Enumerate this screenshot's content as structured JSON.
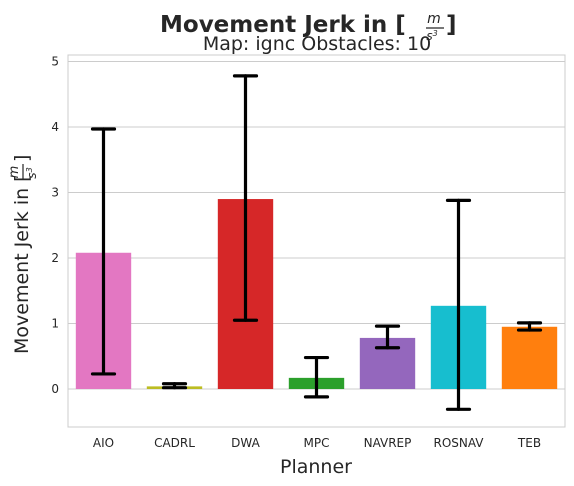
{
  "chart_data": {
    "type": "bar",
    "title": "Movement Jerk in [m/s³]",
    "title_prefix": "Movement Jerk in [",
    "title_suffix": "]",
    "subtitle": "Map: ignc Obstacles: 10",
    "xlabel": "Planner",
    "ylabel_prefix": "Movement Jerk in [",
    "ylabel_suffix": "]",
    "unit_num": "m",
    "unit_den": "s",
    "unit_den_exp": "3",
    "categories": [
      "AIO",
      "CADRL",
      "DWA",
      "MPC",
      "NAVREP",
      "ROSNAV",
      "TEB"
    ],
    "values": [
      2.08,
      0.04,
      2.9,
      0.17,
      0.78,
      1.27,
      0.95
    ],
    "error_low": [
      0.23,
      0.02,
      1.05,
      -0.12,
      0.63,
      -0.31,
      0.9
    ],
    "error_high": [
      3.97,
      0.08,
      4.78,
      0.48,
      0.96,
      2.88,
      1.01
    ],
    "colors": [
      "#e377c2",
      "#bcbd22",
      "#d62728",
      "#2ca02c",
      "#9467bd",
      "#17becf",
      "#ff7f0e"
    ],
    "yticks": [
      0,
      1,
      2,
      3,
      4,
      5
    ],
    "ylim": [
      -0.57,
      5.05
    ],
    "grid": "horizontal",
    "style": "whitegrid"
  }
}
